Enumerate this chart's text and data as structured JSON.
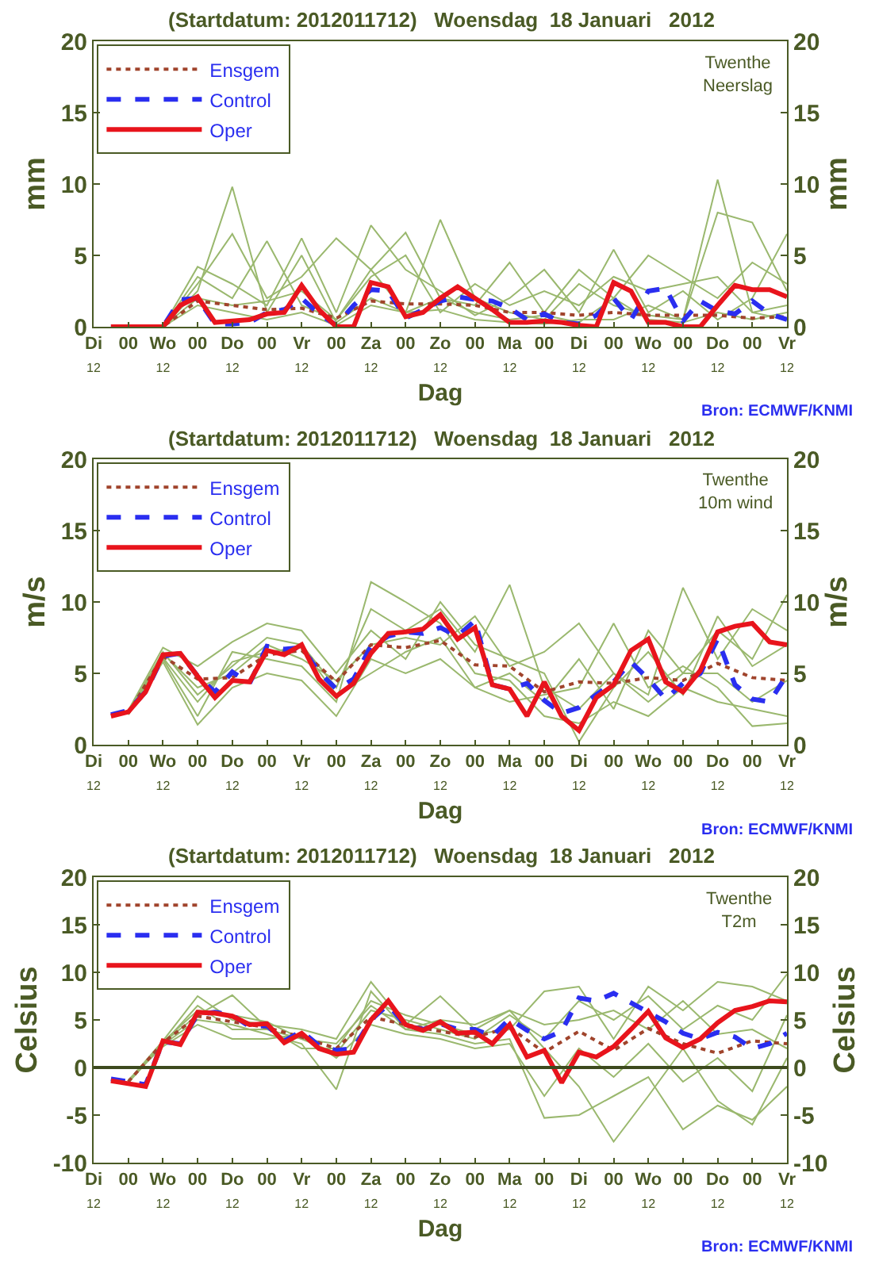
{
  "chart_data": [
    {
      "type": "line",
      "title": "(Startdatum: 2012011712)   Woensdag  18 Januari   2012",
      "xlabel": "Dag",
      "ylabel": "mm",
      "y2label": "mm",
      "annotations": [
        "Twenthe\nNeerslag",
        "Bron: ECMWF/KNMI"
      ],
      "legend": "top left",
      "xlim": [
        "2012-01-17T12:00",
        "2012-01-27T12:00"
      ],
      "xticks": [
        {
          "value": "2012-01-17T12:00",
          "label": "Di\n12"
        },
        {
          "value": "2012-01-18T00:00",
          "label": "00"
        },
        {
          "value": "2012-01-18T12:00",
          "label": "Wo\n12"
        },
        {
          "value": "2012-01-19T00:00",
          "label": "00"
        },
        {
          "value": "2012-01-19T12:00",
          "label": "Do\n12"
        },
        {
          "value": "2012-01-20T00:00",
          "label": "00"
        },
        {
          "value": "2012-01-20T12:00",
          "label": "Vr\n12"
        },
        {
          "value": "2012-01-21T00:00",
          "label": "00"
        },
        {
          "value": "2012-01-21T12:00",
          "label": "Za\n12"
        },
        {
          "value": "2012-01-22T00:00",
          "label": "00"
        },
        {
          "value": "2012-01-22T12:00",
          "label": "Zo\n12"
        },
        {
          "value": "2012-01-23T00:00",
          "label": "00"
        },
        {
          "value": "2012-01-23T12:00",
          "label": "Ma\n12"
        },
        {
          "value": "2012-01-24T00:00",
          "label": "00"
        },
        {
          "value": "2012-01-24T12:00",
          "label": "Di\n12"
        },
        {
          "value": "2012-01-25T00:00",
          "label": "00"
        },
        {
          "value": "2012-01-25T12:00",
          "label": "Wo\n12"
        },
        {
          "value": "2012-01-26T00:00",
          "label": "00"
        },
        {
          "value": "2012-01-26T12:00",
          "label": "Do\n12"
        },
        {
          "value": "2012-01-27T00:00",
          "label": "00"
        },
        {
          "value": "2012-01-27T12:00",
          "label": "Vr\n12"
        }
      ],
      "ylim": [
        0,
        20
      ],
      "yticks": [
        0,
        5,
        10,
        15,
        20
      ],
      "y2lim": [
        0,
        20
      ],
      "y2ticks": [
        0,
        5,
        10,
        15,
        20
      ],
      "x": [
        "2012-01-18T00:00",
        "2012-01-18T12:00",
        "2012-01-19T00:00",
        "2012-01-19T12:00",
        "2012-01-20T00:00",
        "2012-01-20T12:00",
        "2012-01-21T00:00",
        "2012-01-21T12:00",
        "2012-01-22T00:00",
        "2012-01-22T12:00",
        "2012-01-23T00:00",
        "2012-01-23T12:00",
        "2012-01-24T00:00",
        "2012-01-24T12:00",
        "2012-01-25T00:00",
        "2012-01-25T12:00",
        "2012-01-26T00:00",
        "2012-01-26T12:00",
        "2012-01-27T00:00",
        "2012-01-27T12:00"
      ],
      "series": [
        {
          "color": "#9ab86e",
          "values": [
            0,
            0,
            3.5,
            2.0,
            6.0,
            1.5,
            0.5,
            4.0,
            1.0,
            2.0,
            1.0,
            0.5,
            0.8,
            0.3,
            2.0,
            0.5,
            0.3,
            1.0,
            0.5,
            1.0
          ]
        },
        {
          "color": "#9ab86e",
          "values": [
            0,
            0,
            2.5,
            9.8,
            1.0,
            5.0,
            0.3,
            2.0,
            1.0,
            7.5,
            2.0,
            1.0,
            0.5,
            3.0,
            1.5,
            0.8,
            0.5,
            10.3,
            1.0,
            0.5
          ]
        },
        {
          "color": "#9ab86e",
          "values": [
            0,
            0,
            4.2,
            3.0,
            1.5,
            6.2,
            1.0,
            7.1,
            4.0,
            2.5,
            0.8,
            2.0,
            4.0,
            1.0,
            5.4,
            1.0,
            2.5,
            0.5,
            2.0,
            6.5
          ]
        },
        {
          "color": "#9ab86e",
          "values": [
            0,
            0,
            1.5,
            1.0,
            0.5,
            1.0,
            0.1,
            1.5,
            1.0,
            1.2,
            0.5,
            0.3,
            0.2,
            0.5,
            0.5,
            1.5,
            0.5,
            8.0,
            7.3,
            2.5
          ]
        },
        {
          "color": "#9ab86e",
          "values": [
            0,
            0,
            3.0,
            6.5,
            2.0,
            3.5,
            6.2,
            4.0,
            6.6,
            2.0,
            1.5,
            4.5,
            1.0,
            4.0,
            2.0,
            5.0,
            3.5,
            2.0,
            4.5,
            3.0
          ]
        },
        {
          "color": "#9ab86e",
          "values": [
            0,
            0,
            2.0,
            1.5,
            1.8,
            2.5,
            0.5,
            3.5,
            5.0,
            1.0,
            3.0,
            1.5,
            2.5,
            1.5,
            3.5,
            2.5,
            3.0,
            3.5,
            1.0,
            1.5
          ]
        },
        {
          "name": "Ensgem",
          "color": "#a0442c",
          "line_style": "dotted",
          "values": [
            0,
            0,
            1.8,
            1.5,
            1.2,
            1.3,
            0.6,
            1.8,
            1.6,
            1.6,
            1.5,
            1.0,
            1.0,
            0.8,
            1.0,
            0.8,
            0.8,
            0.8,
            0.6,
            0.7
          ]
        },
        {
          "name": "Control",
          "color": "#2a2ef0",
          "line_style": "dashed",
          "x": [
            "2012-01-17T18:00",
            "2012-01-18T00:00",
            "2012-01-18T06:00",
            "2012-01-18T12:00",
            "2012-01-18T18:00",
            "2012-01-19T00:00",
            "2012-01-19T06:00",
            "2012-01-19T12:00",
            "2012-01-19T18:00",
            "2012-01-20T00:00",
            "2012-01-20T06:00",
            "2012-01-20T12:00",
            "2012-01-20T18:00",
            "2012-01-21T00:00",
            "2012-01-21T06:00",
            "2012-01-21T12:00",
            "2012-01-21T18:00",
            "2012-01-22T00:00",
            "2012-01-22T06:00",
            "2012-01-22T12:00",
            "2012-01-22T18:00",
            "2012-01-23T00:00",
            "2012-01-23T06:00",
            "2012-01-23T12:00",
            "2012-01-23T18:00",
            "2012-01-24T00:00",
            "2012-01-24T06:00",
            "2012-01-24T12:00",
            "2012-01-24T18:00",
            "2012-01-25T00:00",
            "2012-01-25T06:00",
            "2012-01-25T12:00",
            "2012-01-25T18:00",
            "2012-01-26T00:00",
            "2012-01-26T06:00",
            "2012-01-26T12:00",
            "2012-01-26T18:00",
            "2012-01-27T00:00",
            "2012-01-27T06:00",
            "2012-01-27T12:00"
          ],
          "values": [
            0,
            0,
            0,
            0,
            1.9,
            2.0,
            0.2,
            0.2,
            0.3,
            1.0,
            1.2,
            2.0,
            0.9,
            0.1,
            1.5,
            2.6,
            2.5,
            0.6,
            1.2,
            1.8,
            2.1,
            1.9,
            1.8,
            1.3,
            0.5,
            0.9,
            0.3,
            0.2,
            0.8,
            2.0,
            0.5,
            2.5,
            2.7,
            0.4,
            1.8,
            1.1,
            0.9,
            1.8,
            0.9,
            0.5
          ]
        },
        {
          "name": "Oper",
          "color": "#e8141c",
          "line_style": "solid",
          "x": [
            "2012-01-17T18:00",
            "2012-01-18T00:00",
            "2012-01-18T06:00",
            "2012-01-18T12:00",
            "2012-01-18T18:00",
            "2012-01-19T00:00",
            "2012-01-19T06:00",
            "2012-01-19T12:00",
            "2012-01-19T18:00",
            "2012-01-20T00:00",
            "2012-01-20T06:00",
            "2012-01-20T12:00",
            "2012-01-20T18:00",
            "2012-01-21T00:00",
            "2012-01-21T06:00",
            "2012-01-21T12:00",
            "2012-01-21T18:00",
            "2012-01-22T00:00",
            "2012-01-22T06:00",
            "2012-01-22T12:00",
            "2012-01-22T18:00",
            "2012-01-23T00:00",
            "2012-01-23T06:00",
            "2012-01-23T12:00",
            "2012-01-23T18:00",
            "2012-01-24T00:00",
            "2012-01-24T06:00",
            "2012-01-24T12:00",
            "2012-01-24T18:00",
            "2012-01-25T00:00",
            "2012-01-25T06:00",
            "2012-01-25T12:00",
            "2012-01-25T18:00",
            "2012-01-26T00:00",
            "2012-01-26T06:00",
            "2012-01-26T12:00",
            "2012-01-26T18:00",
            "2012-01-27T00:00",
            "2012-01-27T06:00",
            "2012-01-27T12:00"
          ],
          "values": [
            0,
            0,
            0,
            0,
            1.5,
            2.1,
            0.3,
            0.4,
            0.5,
            0.9,
            1.0,
            2.9,
            1.2,
            0.0,
            0.0,
            3.1,
            2.8,
            0.7,
            1.0,
            2.0,
            2.8,
            2.0,
            1.2,
            0.3,
            0.3,
            0.4,
            0.3,
            0.1,
            0.0,
            3.1,
            2.5,
            0.3,
            0.3,
            0.0,
            0.0,
            1.5,
            2.9,
            2.6,
            2.6,
            2.1
          ]
        }
      ]
    },
    {
      "type": "line",
      "title": "(Startdatum: 2012011712)   Woensdag  18 Januari   2012",
      "xlabel": "Dag",
      "ylabel": "m/s",
      "y2label": "m/s",
      "annotations": [
        "Twenthe\n10m wind",
        "Bron: ECMWF/KNMI"
      ],
      "legend": "top left",
      "xlim": [
        "2012-01-17T12:00",
        "2012-01-27T12:00"
      ],
      "xticks": [
        {
          "value": "2012-01-17T12:00",
          "label": "Di\n12"
        },
        {
          "value": "2012-01-18T00:00",
          "label": "00"
        },
        {
          "value": "2012-01-18T12:00",
          "label": "Wo\n12"
        },
        {
          "value": "2012-01-19T00:00",
          "label": "00"
        },
        {
          "value": "2012-01-19T12:00",
          "label": "Do\n12"
        },
        {
          "value": "2012-01-20T00:00",
          "label": "00"
        },
        {
          "value": "2012-01-20T12:00",
          "label": "Vr\n12"
        },
        {
          "value": "2012-01-21T00:00",
          "label": "00"
        },
        {
          "value": "2012-01-21T12:00",
          "label": "Za\n12"
        },
        {
          "value": "2012-01-22T00:00",
          "label": "00"
        },
        {
          "value": "2012-01-22T12:00",
          "label": "Zo\n12"
        },
        {
          "value": "2012-01-23T00:00",
          "label": "00"
        },
        {
          "value": "2012-01-23T12:00",
          "label": "Ma\n12"
        },
        {
          "value": "2012-01-24T00:00",
          "label": "00"
        },
        {
          "value": "2012-01-24T12:00",
          "label": "Di\n12"
        },
        {
          "value": "2012-01-25T00:00",
          "label": "00"
        },
        {
          "value": "2012-01-25T12:00",
          "label": "Wo\n12"
        },
        {
          "value": "2012-01-26T00:00",
          "label": "00"
        },
        {
          "value": "2012-01-26T12:00",
          "label": "Do\n12"
        },
        {
          "value": "2012-01-27T00:00",
          "label": "00"
        },
        {
          "value": "2012-01-27T12:00",
          "label": "Vr\n12"
        }
      ],
      "ylim": [
        0,
        20
      ],
      "yticks": [
        0,
        5,
        10,
        15,
        20
      ],
      "y2lim": [
        0,
        20
      ],
      "y2ticks": [
        0,
        5,
        10,
        15,
        20
      ],
      "x": [
        "2012-01-18T00:00",
        "2012-01-18T12:00",
        "2012-01-19T00:00",
        "2012-01-19T12:00",
        "2012-01-20T00:00",
        "2012-01-20T12:00",
        "2012-01-21T00:00",
        "2012-01-21T12:00",
        "2012-01-22T00:00",
        "2012-01-22T12:00",
        "2012-01-23T00:00",
        "2012-01-23T12:00",
        "2012-01-24T00:00",
        "2012-01-24T12:00",
        "2012-01-25T00:00",
        "2012-01-25T12:00",
        "2012-01-26T00:00",
        "2012-01-26T12:00",
        "2012-01-27T00:00",
        "2012-01-27T12:00"
      ],
      "series": [
        {
          "color": "#9ab86e",
          "values": [
            2.3,
            6.5,
            3.5,
            5.5,
            7.5,
            7.0,
            4.0,
            9.5,
            8.0,
            9.5,
            6.5,
            11.2,
            4.0,
            2.5,
            5.0,
            3.0,
            5.0,
            8.0,
            6.0,
            10.5
          ]
        },
        {
          "color": "#9ab86e",
          "values": [
            2.2,
            6.0,
            2.0,
            6.5,
            6.0,
            5.5,
            3.0,
            11.4,
            10.0,
            8.5,
            5.0,
            4.5,
            2.0,
            1.5,
            3.0,
            2.0,
            4.0,
            3.0,
            2.5,
            2.0
          ]
        },
        {
          "color": "#9ab86e",
          "values": [
            2.4,
            6.8,
            5.5,
            7.2,
            8.5,
            8.0,
            5.0,
            8.0,
            6.0,
            10.0,
            7.0,
            6.0,
            5.0,
            0.2,
            4.0,
            6.5,
            3.5,
            9.0,
            5.5,
            7.0
          ]
        },
        {
          "color": "#9ab86e",
          "values": [
            2.1,
            5.8,
            1.4,
            4.0,
            5.0,
            4.5,
            2.0,
            6.0,
            5.0,
            6.0,
            4.0,
            3.0,
            3.5,
            4.0,
            8.5,
            4.0,
            5.5,
            4.0,
            1.3,
            1.5
          ]
        },
        {
          "color": "#9ab86e",
          "values": [
            2.2,
            6.4,
            4.0,
            5.0,
            7.0,
            6.0,
            4.5,
            7.0,
            7.5,
            7.0,
            9.0,
            5.5,
            6.5,
            8.5,
            5.0,
            3.5,
            11.0,
            6.0,
            9.5,
            8.0
          ]
        },
        {
          "color": "#9ab86e",
          "values": [
            2.3,
            6.1,
            3.0,
            5.8,
            6.5,
            6.8,
            3.5,
            5.0,
            6.5,
            7.5,
            4.0,
            5.0,
            3.0,
            6.0,
            2.5,
            8.0,
            5.0,
            5.0,
            3.0,
            4.5
          ]
        },
        {
          "name": "Ensgem",
          "color": "#a0442c",
          "line_style": "dotted",
          "values": [
            2.2,
            6.2,
            4.6,
            4.7,
            6.3,
            6.6,
            4.4,
            7.0,
            6.8,
            7.3,
            5.6,
            5.5,
            3.7,
            4.4,
            4.3,
            4.7,
            4.5,
            5.7,
            4.7,
            4.5
          ]
        },
        {
          "name": "Control",
          "color": "#2a2ef0",
          "line_style": "dashed",
          "x": [
            "2012-01-17T18:00",
            "2012-01-18T00:00",
            "2012-01-18T06:00",
            "2012-01-18T12:00",
            "2012-01-18T18:00",
            "2012-01-19T00:00",
            "2012-01-19T06:00",
            "2012-01-19T12:00",
            "2012-01-19T18:00",
            "2012-01-20T00:00",
            "2012-01-20T06:00",
            "2012-01-20T12:00",
            "2012-01-20T18:00",
            "2012-01-21T00:00",
            "2012-01-21T06:00",
            "2012-01-21T12:00",
            "2012-01-21T18:00",
            "2012-01-22T00:00",
            "2012-01-22T06:00",
            "2012-01-22T12:00",
            "2012-01-22T18:00",
            "2012-01-23T00:00",
            "2012-01-23T06:00",
            "2012-01-23T12:00",
            "2012-01-23T18:00",
            "2012-01-24T00:00",
            "2012-01-24T06:00",
            "2012-01-24T12:00",
            "2012-01-24T18:00",
            "2012-01-25T00:00",
            "2012-01-25T06:00",
            "2012-01-25T12:00",
            "2012-01-25T18:00",
            "2012-01-26T00:00",
            "2012-01-26T06:00",
            "2012-01-26T12:00",
            "2012-01-26T18:00",
            "2012-01-27T00:00",
            "2012-01-27T06:00",
            "2012-01-27T12:00"
          ],
          "values": [
            2.1,
            2.4,
            3.7,
            6.2,
            6.4,
            4.8,
            3.7,
            5.1,
            4.3,
            6.9,
            6.7,
            6.8,
            5.1,
            3.9,
            4.6,
            6.9,
            7.6,
            7.9,
            7.8,
            8.2,
            7.6,
            8.7,
            4.2,
            3.9,
            4.3,
            3.1,
            2.2,
            2.6,
            3.5,
            4.4,
            5.8,
            4.6,
            3.2,
            4.3,
            5.0,
            7.4,
            4.2,
            3.2,
            3.0,
            4.9
          ]
        },
        {
          "name": "Oper",
          "color": "#e8141c",
          "line_style": "solid",
          "x": [
            "2012-01-17T18:00",
            "2012-01-18T00:00",
            "2012-01-18T06:00",
            "2012-01-18T12:00",
            "2012-01-18T18:00",
            "2012-01-19T00:00",
            "2012-01-19T06:00",
            "2012-01-19T12:00",
            "2012-01-19T18:00",
            "2012-01-20T00:00",
            "2012-01-20T06:00",
            "2012-01-20T12:00",
            "2012-01-20T18:00",
            "2012-01-21T00:00",
            "2012-01-21T06:00",
            "2012-01-21T12:00",
            "2012-01-21T18:00",
            "2012-01-22T00:00",
            "2012-01-22T06:00",
            "2012-01-22T12:00",
            "2012-01-22T18:00",
            "2012-01-23T00:00",
            "2012-01-23T06:00",
            "2012-01-23T12:00",
            "2012-01-23T18:00",
            "2012-01-24T00:00",
            "2012-01-24T06:00",
            "2012-01-24T12:00",
            "2012-01-24T18:00",
            "2012-01-25T00:00",
            "2012-01-25T06:00",
            "2012-01-25T12:00",
            "2012-01-25T18:00",
            "2012-01-26T00:00",
            "2012-01-26T06:00",
            "2012-01-26T12:00",
            "2012-01-26T18:00",
            "2012-01-27T00:00",
            "2012-01-27T06:00",
            "2012-01-27T12:00"
          ],
          "values": [
            2.0,
            2.3,
            3.7,
            6.3,
            6.4,
            4.8,
            3.3,
            4.5,
            4.4,
            6.6,
            6.3,
            7.0,
            4.6,
            3.4,
            4.3,
            6.4,
            7.8,
            7.9,
            8.1,
            9.1,
            7.4,
            8.2,
            4.2,
            3.9,
            2.0,
            4.4,
            2.0,
            1.0,
            3.3,
            4.2,
            6.6,
            7.4,
            4.4,
            3.7,
            5.2,
            7.9,
            8.3,
            8.5,
            7.2,
            7.0
          ]
        }
      ]
    },
    {
      "type": "line",
      "title": "(Startdatum: 2012011712)   Woensdag  18 Januari   2012",
      "xlabel": "Dag",
      "ylabel": "Celsius",
      "y2label": "Celsius",
      "annotations": [
        "Twenthe\nT2m",
        "Bron: ECMWF/KNMI"
      ],
      "legend": "top left",
      "xlim": [
        "2012-01-17T12:00",
        "2012-01-27T12:00"
      ],
      "xticks": [
        {
          "value": "2012-01-17T12:00",
          "label": "Di\n12"
        },
        {
          "value": "2012-01-18T00:00",
          "label": "00"
        },
        {
          "value": "2012-01-18T12:00",
          "label": "Wo\n12"
        },
        {
          "value": "2012-01-19T00:00",
          "label": "00"
        },
        {
          "value": "2012-01-19T12:00",
          "label": "Do\n12"
        },
        {
          "value": "2012-01-20T00:00",
          "label": "00"
        },
        {
          "value": "2012-01-20T12:00",
          "label": "Vr\n12"
        },
        {
          "value": "2012-01-21T00:00",
          "label": "00"
        },
        {
          "value": "2012-01-21T12:00",
          "label": "Za\n12"
        },
        {
          "value": "2012-01-22T00:00",
          "label": "00"
        },
        {
          "value": "2012-01-22T12:00",
          "label": "Zo\n12"
        },
        {
          "value": "2012-01-23T00:00",
          "label": "00"
        },
        {
          "value": "2012-01-23T12:00",
          "label": "Ma\n12"
        },
        {
          "value": "2012-01-24T00:00",
          "label": "00"
        },
        {
          "value": "2012-01-24T12:00",
          "label": "Di\n12"
        },
        {
          "value": "2012-01-25T00:00",
          "label": "00"
        },
        {
          "value": "2012-01-25T12:00",
          "label": "Wo\n12"
        },
        {
          "value": "2012-01-26T00:00",
          "label": "00"
        },
        {
          "value": "2012-01-26T12:00",
          "label": "Do\n12"
        },
        {
          "value": "2012-01-27T00:00",
          "label": "00"
        },
        {
          "value": "2012-01-27T12:00",
          "label": "Vr\n12"
        }
      ],
      "ylim": [
        -10,
        20
      ],
      "yticks": [
        -10,
        -5,
        0,
        5,
        10,
        15,
        20
      ],
      "y2lim": [
        -10,
        20
      ],
      "y2ticks": [
        -10,
        -5,
        0,
        5,
        10,
        15,
        20
      ],
      "ref_lines": [
        {
          "axis": "y",
          "value": 0,
          "color": "#3d4a1e"
        }
      ],
      "x": [
        "2012-01-18T00:00",
        "2012-01-18T12:00",
        "2012-01-19T00:00",
        "2012-01-19T12:00",
        "2012-01-20T00:00",
        "2012-01-20T12:00",
        "2012-01-21T00:00",
        "2012-01-21T12:00",
        "2012-01-22T00:00",
        "2012-01-22T12:00",
        "2012-01-23T00:00",
        "2012-01-23T12:00",
        "2012-01-24T00:00",
        "2012-01-24T12:00",
        "2012-01-25T00:00",
        "2012-01-25T12:00",
        "2012-01-26T00:00",
        "2012-01-26T12:00",
        "2012-01-27T00:00",
        "2012-01-27T12:00"
      ],
      "series": [
        {
          "color": "#9ab86e",
          "values": [
            -1.5,
            2.5,
            6.5,
            4.0,
            4.0,
            3.0,
            1.5,
            6.0,
            5.0,
            4.0,
            3.0,
            5.5,
            3.0,
            7.0,
            5.0,
            7.5,
            4.0,
            6.5,
            5.0,
            9.8
          ]
        },
        {
          "color": "#9ab86e",
          "values": [
            -1.6,
            2.4,
            5.0,
            4.5,
            3.5,
            2.5,
            -2.3,
            8.0,
            4.0,
            3.5,
            2.5,
            3.0,
            -5.3,
            -5.0,
            -3.0,
            -1.0,
            -6.5,
            -4.0,
            -5.5,
            -2.0
          ]
        },
        {
          "color": "#9ab86e",
          "values": [
            -1.4,
            2.8,
            7.5,
            5.0,
            4.5,
            4.0,
            3.0,
            9.0,
            4.5,
            7.5,
            4.0,
            6.0,
            2.0,
            -2.0,
            -7.8,
            -3.0,
            2.0,
            -3.5,
            -6.0,
            1.0
          ]
        },
        {
          "color": "#9ab86e",
          "values": [
            -1.5,
            2.6,
            5.5,
            7.6,
            4.2,
            2.0,
            2.0,
            7.0,
            5.5,
            4.5,
            3.5,
            4.0,
            8.0,
            8.5,
            3.0,
            8.5,
            6.0,
            9.0,
            8.5,
            7.0
          ]
        },
        {
          "color": "#9ab86e",
          "values": [
            -1.3,
            2.2,
            4.5,
            3.0,
            3.0,
            3.5,
            1.0,
            4.5,
            3.5,
            3.0,
            2.0,
            2.5,
            -3.0,
            2.0,
            -1.0,
            2.5,
            -1.5,
            1.0,
            -2.5,
            5.5
          ]
        },
        {
          "color": "#9ab86e",
          "values": [
            -1.5,
            2.7,
            6.0,
            5.5,
            4.8,
            3.0,
            2.5,
            6.5,
            4.0,
            5.0,
            4.5,
            6.0,
            4.5,
            5.0,
            6.0,
            4.0,
            7.0,
            3.5,
            4.0,
            2.0
          ]
        },
        {
          "name": "Ensgem",
          "color": "#a0442c",
          "line_style": "dotted",
          "values": [
            -1.5,
            2.6,
            5.4,
            4.8,
            4.2,
            3.2,
            2.0,
            5.3,
            4.5,
            3.8,
            3.2,
            4.2,
            1.6,
            3.8,
            1.8,
            4.1,
            2.5,
            1.5,
            2.8,
            2.5
          ]
        },
        {
          "name": "Control",
          "color": "#2a2ef0",
          "line_style": "dashed",
          "x": [
            "2012-01-17T18:00",
            "2012-01-18T00:00",
            "2012-01-18T06:00",
            "2012-01-18T12:00",
            "2012-01-18T18:00",
            "2012-01-19T00:00",
            "2012-01-19T06:00",
            "2012-01-19T12:00",
            "2012-01-19T18:00",
            "2012-01-20T00:00",
            "2012-01-20T06:00",
            "2012-01-20T12:00",
            "2012-01-20T18:00",
            "2012-01-21T00:00",
            "2012-01-21T06:00",
            "2012-01-21T12:00",
            "2012-01-21T18:00",
            "2012-01-22T00:00",
            "2012-01-22T06:00",
            "2012-01-22T12:00",
            "2012-01-22T18:00",
            "2012-01-23T00:00",
            "2012-01-23T06:00",
            "2012-01-23T12:00",
            "2012-01-23T18:00",
            "2012-01-24T00:00",
            "2012-01-24T06:00",
            "2012-01-24T12:00",
            "2012-01-24T18:00",
            "2012-01-25T00:00",
            "2012-01-25T06:00",
            "2012-01-25T12:00",
            "2012-01-25T18:00",
            "2012-01-26T00:00",
            "2012-01-26T06:00",
            "2012-01-26T12:00",
            "2012-01-26T18:00",
            "2012-01-27T00:00",
            "2012-01-27T06:00",
            "2012-01-27T12:00"
          ],
          "values": [
            -1.2,
            -1.5,
            -1.8,
            2.7,
            2.5,
            5.6,
            5.8,
            5.5,
            4.3,
            4.4,
            2.8,
            3.8,
            2.3,
            1.8,
            2.0,
            5.0,
            6.6,
            4.4,
            4.0,
            4.6,
            4.0,
            4.0,
            3.3,
            5.1,
            3.9,
            3.0,
            3.8,
            7.3,
            7.0,
            7.8,
            6.8,
            5.8,
            4.8,
            3.6,
            3.0,
            3.7,
            3.2,
            2.0,
            2.5,
            3.6
          ]
        },
        {
          "name": "Oper",
          "color": "#e8141c",
          "line_style": "solid",
          "x": [
            "2012-01-17T18:00",
            "2012-01-18T00:00",
            "2012-01-18T06:00",
            "2012-01-18T12:00",
            "2012-01-18T18:00",
            "2012-01-19T00:00",
            "2012-01-19T06:00",
            "2012-01-19T12:00",
            "2012-01-19T18:00",
            "2012-01-20T00:00",
            "2012-01-20T06:00",
            "2012-01-20T12:00",
            "2012-01-20T18:00",
            "2012-01-21T00:00",
            "2012-01-21T06:00",
            "2012-01-21T12:00",
            "2012-01-21T18:00",
            "2012-01-22T00:00",
            "2012-01-22T06:00",
            "2012-01-22T12:00",
            "2012-01-22T18:00",
            "2012-01-23T00:00",
            "2012-01-23T06:00",
            "2012-01-23T12:00",
            "2012-01-23T18:00",
            "2012-01-24T00:00",
            "2012-01-24T06:00",
            "2012-01-24T12:00",
            "2012-01-24T18:00",
            "2012-01-25T00:00",
            "2012-01-25T06:00",
            "2012-01-25T12:00",
            "2012-01-25T18:00",
            "2012-01-26T00:00",
            "2012-01-26T06:00",
            "2012-01-26T12:00",
            "2012-01-26T18:00",
            "2012-01-27T00:00",
            "2012-01-27T06:00",
            "2012-01-27T12:00"
          ],
          "values": [
            -1.4,
            -1.7,
            -2.0,
            2.8,
            2.4,
            5.8,
            5.7,
            5.4,
            4.5,
            4.6,
            2.6,
            3.6,
            2.0,
            1.4,
            1.6,
            5.0,
            7.0,
            4.5,
            3.9,
            4.8,
            3.6,
            3.7,
            2.5,
            4.5,
            1.1,
            1.8,
            -1.6,
            1.6,
            1.1,
            2.2,
            4.0,
            5.9,
            3.1,
            2.1,
            3.0,
            4.7,
            6.0,
            6.4,
            7.0,
            6.9
          ]
        }
      ]
    }
  ]
}
